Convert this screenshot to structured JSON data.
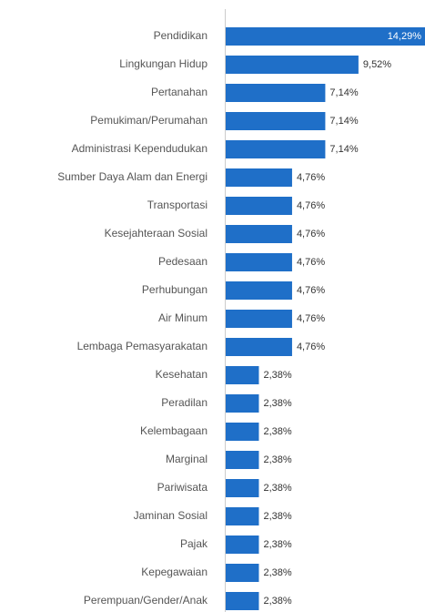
{
  "chart_data": {
    "type": "bar",
    "orientation": "horizontal",
    "categories": [
      "Pendidikan",
      "Lingkungan Hidup",
      "Pertanahan",
      "Pemukiman/Perumahan",
      "Administrasi Kependudukan",
      "Sumber Daya Alam dan Energi",
      "Transportasi",
      "Kesejahteraan Sosial",
      "Pedesaan",
      "Perhubungan",
      "Air Minum",
      "Lembaga Pemasyarakatan",
      "Kesehatan",
      "Peradilan",
      "Kelembagaan",
      "Marginal",
      "Pariwisata",
      "Jaminan Sosial",
      "Pajak",
      "Kepegawaian",
      "Perempuan/Gender/Anak"
    ],
    "values": [
      14.29,
      9.52,
      7.14,
      7.14,
      7.14,
      4.76,
      4.76,
      4.76,
      4.76,
      4.76,
      4.76,
      4.76,
      2.38,
      2.38,
      2.38,
      2.38,
      2.38,
      2.38,
      2.38,
      2.38,
      2.38
    ],
    "value_labels": [
      "14,29%",
      "9,52%",
      "7,14%",
      "7,14%",
      "7,14%",
      "4,76%",
      "4,76%",
      "4,76%",
      "4,76%",
      "4,76%",
      "4,76%",
      "4,76%",
      "2,38%",
      "2,38%",
      "2,38%",
      "2,38%",
      "2,38%",
      "2,38%",
      "2,38%",
      "2,38%",
      "2,38%"
    ],
    "color": "#1f6fc8",
    "xlim": [
      0,
      14.29
    ]
  }
}
